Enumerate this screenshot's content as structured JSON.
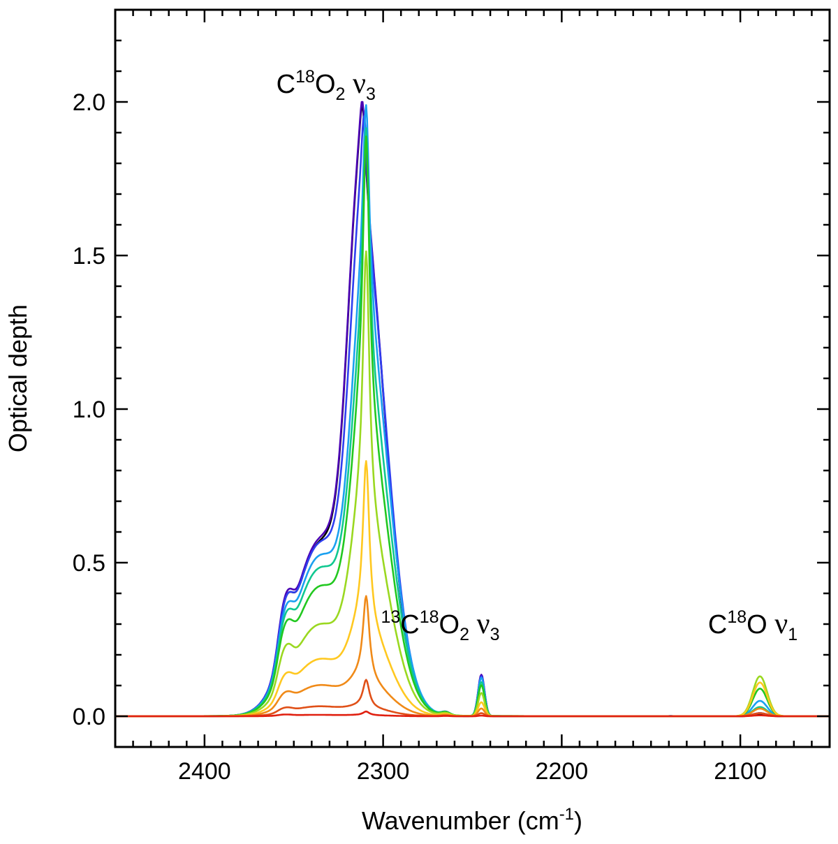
{
  "chart_data": {
    "type": "line",
    "title": "",
    "xlabel": "Wavenumber (cm",
    "xlabel_sup": "-1",
    "xlabel_close": ")",
    "ylabel": "Optical depth",
    "xlim": [
      2450,
      2050
    ],
    "ylim": [
      -0.1,
      2.3
    ],
    "x_ticks": [
      2400,
      2300,
      2200,
      2100
    ],
    "x_tick_labels": [
      "2400",
      "2300",
      "2200",
      "2100"
    ],
    "x_minor_step": 10,
    "y_ticks": [
      0.0,
      0.5,
      1.0,
      1.5,
      2.0
    ],
    "y_tick_labels": [
      "0.0",
      "0.5",
      "1.0",
      "1.5",
      "2.0"
    ],
    "y_minor_step": 0.1,
    "grid": false,
    "annotations": [
      {
        "x": 2332,
        "y": 2.03,
        "parts": [
          {
            "t": "C"
          },
          {
            "t": "18",
            "s": "sup"
          },
          {
            "t": "O"
          },
          {
            "t": "2",
            "s": "sub"
          },
          {
            "t": " "
          },
          {
            "t": "ν",
            "s": "nu"
          },
          {
            "t": "3",
            "s": "sub"
          }
        ]
      },
      {
        "x": 2268,
        "y": 0.27,
        "parts": [
          {
            "t": "13",
            "s": "sup"
          },
          {
            "t": "C"
          },
          {
            "t": "18",
            "s": "sup"
          },
          {
            "t": "O"
          },
          {
            "t": "2",
            "s": "sub"
          },
          {
            "t": " "
          },
          {
            "t": "ν",
            "s": "nu"
          },
          {
            "t": "3",
            "s": "sub"
          }
        ]
      },
      {
        "x": 2093,
        "y": 0.27,
        "parts": [
          {
            "t": "C"
          },
          {
            "t": "18",
            "s": "sup"
          },
          {
            "t": "O"
          },
          {
            "t": " "
          },
          {
            "t": "ν",
            "s": "nu"
          },
          {
            "t": "1",
            "s": "sub"
          }
        ]
      }
    ],
    "series": [
      {
        "color": "#000000",
        "peak": 1.88,
        "shoulder": 0.54,
        "hump": 0.125,
        "side": 0.012,
        "peak13": 0.13,
        "co": 0.005,
        "center": 2312,
        "sharp": 0.15
      },
      {
        "color": "#4b00b4",
        "peak": 1.89,
        "shoulder": 0.55,
        "hump": 0.13,
        "side": 0.012,
        "peak13": 0.135,
        "co": 0.01,
        "center": 2312,
        "sharp": 0.15
      },
      {
        "color": "#2f3ff0",
        "peak": 1.87,
        "shoulder": 0.54,
        "hump": 0.125,
        "side": 0.012,
        "peak13": 0.13,
        "co": 0.01,
        "center": 2311,
        "sharp": 0.2
      },
      {
        "color": "#1aa0f0",
        "peak": 1.93,
        "shoulder": 0.5,
        "hump": 0.115,
        "side": 0.01,
        "peak13": 0.125,
        "co": 0.05,
        "center": 2310,
        "sharp": 0.35
      },
      {
        "color": "#10c890",
        "peak": 1.86,
        "shoulder": 0.46,
        "hump": 0.11,
        "side": 0.01,
        "peak13": 0.11,
        "co": 0.03,
        "center": 2310,
        "sharp": 0.42
      },
      {
        "color": "#22c820",
        "peak": 1.84,
        "shoulder": 0.4,
        "hump": 0.105,
        "side": 0.01,
        "peak13": 0.1,
        "co": 0.09,
        "center": 2310,
        "sharp": 0.5
      },
      {
        "color": "#9ad820",
        "peak": 1.48,
        "shoulder": 0.28,
        "hump": 0.085,
        "side": 0.008,
        "peak13": 0.075,
        "co": 0.13,
        "center": 2310,
        "sharp": 0.58
      },
      {
        "color": "#ffc820",
        "peak": 0.81,
        "shoulder": 0.175,
        "hump": 0.05,
        "side": 0.006,
        "peak13": 0.045,
        "co": 0.11,
        "center": 2310,
        "sharp": 0.66
      },
      {
        "color": "#f08a18",
        "peak": 0.38,
        "shoulder": 0.095,
        "hump": 0.03,
        "side": 0.004,
        "peak13": 0.025,
        "co": 0.025,
        "center": 2310,
        "sharp": 0.72
      },
      {
        "color": "#e05018",
        "peak": 0.115,
        "shoulder": 0.03,
        "hump": 0.012,
        "side": 0.002,
        "peak13": 0.01,
        "co": 0.01,
        "center": 2310,
        "sharp": 0.78
      },
      {
        "color": "#e02010",
        "peak": 0.015,
        "shoulder": 0.004,
        "hump": 0.003,
        "side": 0.001,
        "peak13": 0.002,
        "co": 0.003,
        "center": 2310,
        "sharp": 0.8
      }
    ]
  }
}
